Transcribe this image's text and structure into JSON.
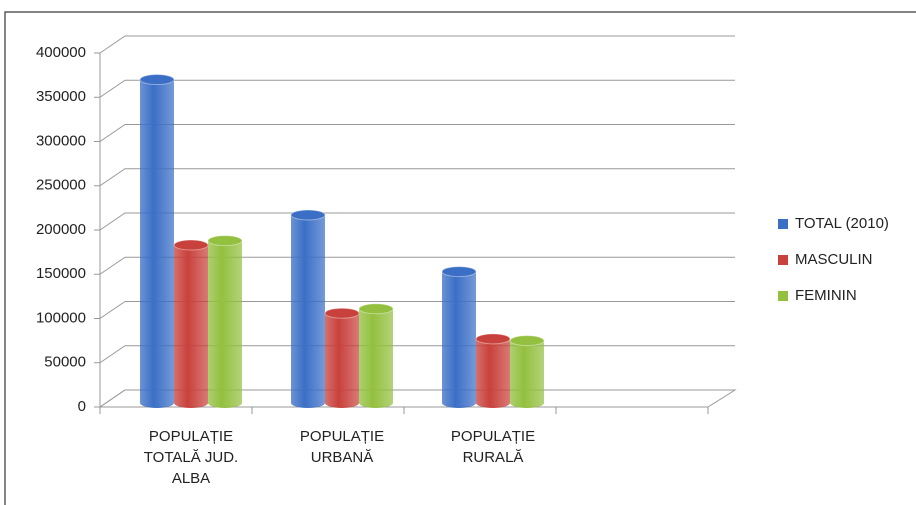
{
  "chart_data": {
    "type": "bar3d",
    "categories": [
      "POPULAȚIE\nTOTALĂ JUD.\nALBA",
      "POPULAȚIE\nURBANĂ",
      "POPULAȚIE\nRURALĂ"
    ],
    "series": [
      {
        "name": "TOTAL (2010)",
        "color": "#3b6fc6",
        "values": [
          370000,
          217000,
          153000
        ]
      },
      {
        "name": "MASCULIN",
        "color": "#c9413c",
        "values": [
          183000,
          106000,
          77000
        ]
      },
      {
        "name": "FEMININ",
        "color": "#93c03f",
        "values": [
          188000,
          111000,
          75000
        ]
      }
    ],
    "ylim": [
      0,
      400000
    ],
    "yticks": [
      0,
      50000,
      100000,
      150000,
      200000,
      250000,
      300000,
      350000,
      400000
    ],
    "grid": true,
    "legend": "right"
  }
}
